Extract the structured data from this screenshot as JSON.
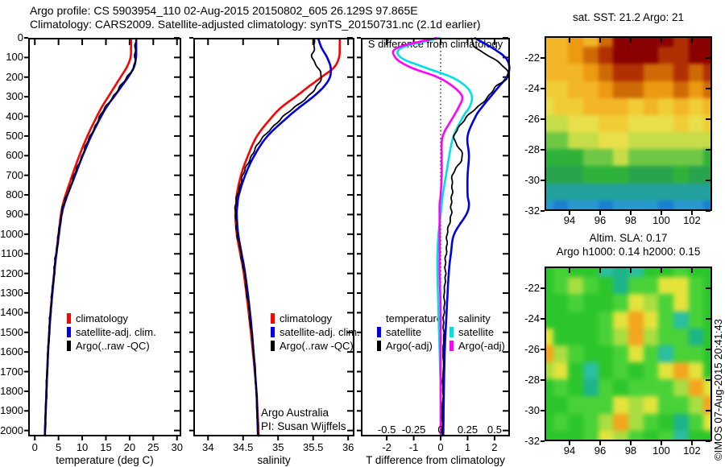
{
  "title": {
    "line1": "Argo profile: CS 5903954_110 02-Aug-2015 20150802_605 26.129S 97.865E",
    "line2": "Climatology: CARS2009. Satellite-adjusted climatology: synTS_20150731.nc (2.1d earlier)"
  },
  "annotations": {
    "argo_program": "Argo Australia",
    "argo_pi": "PI: Susan Wijffels",
    "copyright": "©IMOS 07-Aug-2015 20:41:43"
  },
  "legends": {
    "profile": [
      {
        "label": "climatology",
        "color": "#ff0000"
      },
      {
        "label": "satellite-adj. clim.",
        "color": "#0000e0"
      },
      {
        "label": "Argo(..raw -QC)",
        "color": "#000000"
      }
    ],
    "diff": {
      "temperature": {
        "header": "temperature",
        "items": [
          {
            "label": "satellite",
            "color": "#0000e0"
          },
          {
            "label": "Argo(-adj)",
            "color": "#000000"
          }
        ]
      },
      "salinity": {
        "header": "salinity",
        "items": [
          {
            "label": "satellite",
            "color": "#00e0e0"
          },
          {
            "label": "Argo(-adj)",
            "color": "#ff00ff"
          }
        ]
      }
    }
  },
  "chart_data": [
    {
      "id": "temp",
      "type": "line",
      "xlabel": "temperature (deg C)",
      "xlim": [
        -1.4,
        30.9
      ],
      "ylim": [
        0,
        2030
      ],
      "xticks": [
        0,
        5,
        10,
        15,
        20,
        25,
        30
      ],
      "yticks": [
        0,
        100,
        200,
        300,
        400,
        500,
        600,
        700,
        800,
        900,
        1000,
        1100,
        1200,
        1300,
        1400,
        1500,
        1600,
        1700,
        1800,
        1900,
        2000
      ],
      "ytick_labels_visible": true,
      "depths": [
        0,
        50,
        100,
        150,
        200,
        250,
        300,
        350,
        400,
        500,
        600,
        700,
        800,
        850,
        900,
        1000,
        1100,
        1200,
        1400,
        1600,
        1800,
        2000,
        2030
      ],
      "series": [
        {
          "name": "climatology",
          "color": "#ff0000",
          "width": 2.6,
          "values": [
            20.3,
            20.3,
            20.2,
            19.4,
            18.1,
            16.8,
            15.5,
            14.2,
            13.1,
            11.1,
            9.4,
            7.9,
            6.5,
            5.9,
            5.5,
            5.0,
            4.5,
            4.05,
            3.3,
            2.8,
            2.45,
            2.15,
            2.1
          ]
        },
        {
          "name": "satellite-adj. clim.",
          "color": "#0000e0",
          "width": 2.6,
          "values": [
            21.4,
            21.4,
            21.35,
            20.9,
            19.7,
            18.2,
            16.7,
            15.2,
            14.0,
            11.9,
            10.1,
            8.5,
            6.9,
            6.2,
            5.65,
            5.1,
            4.55,
            4.1,
            3.35,
            2.8,
            2.45,
            2.15,
            2.1
          ]
        },
        {
          "name": "Argo(..raw -QC)",
          "color": "#000000",
          "width": 1.8,
          "jitter": true,
          "values": [
            21.2,
            21.2,
            21.2,
            20.8,
            19.5,
            18.0,
            16.5,
            15.0,
            13.8,
            11.7,
            9.95,
            8.35,
            6.8,
            6.1,
            5.6,
            5.05,
            4.5,
            4.05,
            3.3,
            2.8,
            2.45,
            2.15,
            2.1
          ]
        }
      ]
    },
    {
      "id": "sal",
      "type": "line",
      "xlabel": "salinity",
      "xlim": [
        33.79,
        36.09
      ],
      "ylim": [
        0,
        2030
      ],
      "xticks": [
        34,
        34.5,
        35,
        35.5,
        36
      ],
      "yticks": [
        0,
        100,
        200,
        300,
        400,
        500,
        600,
        700,
        800,
        900,
        1000,
        1100,
        1200,
        1300,
        1400,
        1500,
        1600,
        1700,
        1800,
        1900,
        2000
      ],
      "ytick_labels_visible": false,
      "depths": [
        0,
        50,
        100,
        150,
        200,
        250,
        300,
        350,
        400,
        500,
        600,
        700,
        800,
        850,
        900,
        1000,
        1100,
        1200,
        1400,
        1600,
        1800,
        2000,
        2030
      ],
      "series": [
        {
          "name": "climatology",
          "color": "#ff0000",
          "width": 2.6,
          "values": [
            35.88,
            35.88,
            35.87,
            35.8,
            35.62,
            35.43,
            35.25,
            35.06,
            34.92,
            34.7,
            34.57,
            34.47,
            34.41,
            34.4,
            34.39,
            34.41,
            34.46,
            34.51,
            34.58,
            34.64,
            34.69,
            34.72,
            34.72
          ]
        },
        {
          "name": "satellite-adj. clim.",
          "color": "#0000e0",
          "width": 2.6,
          "values": [
            35.57,
            35.62,
            35.7,
            35.75,
            35.74,
            35.65,
            35.5,
            35.32,
            35.15,
            34.85,
            34.66,
            34.53,
            34.44,
            34.42,
            34.41,
            34.43,
            34.48,
            34.53,
            34.6,
            34.65,
            34.69,
            34.71,
            34.71
          ]
        },
        {
          "name": "Argo(..raw -QC)",
          "color": "#000000",
          "width": 1.8,
          "jitter": true,
          "values": [
            35.5,
            35.52,
            35.49,
            35.56,
            35.62,
            35.55,
            35.42,
            35.25,
            35.08,
            34.8,
            34.62,
            34.5,
            34.42,
            34.4,
            34.39,
            34.42,
            34.47,
            34.52,
            34.59,
            34.65,
            34.69,
            34.71,
            34.71
          ]
        }
      ]
    },
    {
      "id": "diff",
      "type": "line",
      "xlabel": "T difference from climatology",
      "xlim": [
        -2.96,
        2.57
      ],
      "ylim": [
        0,
        2030
      ],
      "xticks": [
        -2,
        -1,
        0,
        1,
        2
      ],
      "yticks": [
        0,
        100,
        200,
        300,
        400,
        500,
        600,
        700,
        800,
        900,
        1000,
        1100,
        1200,
        1300,
        1400,
        1500,
        1600,
        1700,
        1800,
        1900,
        2000
      ],
      "ytick_labels_visible": false,
      "zero_line": true,
      "s_axis": {
        "label": "S difference from climatology",
        "ticks": [
          -0.5,
          -0.25,
          0,
          0.25,
          0.5
        ],
        "scale": 4
      },
      "depths": [
        0,
        50,
        100,
        150,
        200,
        250,
        300,
        350,
        400,
        500,
        600,
        700,
        800,
        850,
        900,
        1000,
        1100,
        1200,
        1400,
        1600,
        1800,
        2000,
        2030
      ],
      "series": [
        {
          "name": "T satellite",
          "axis": "T",
          "color": "#0000e0",
          "width": 2.6,
          "values": [
            1.25,
            1.9,
            2.4,
            2.55,
            2.45,
            2.15,
            1.85,
            1.55,
            1.3,
            1.0,
            1.05,
            1.0,
            1.0,
            1.05,
            0.95,
            0.5,
            0.38,
            0.3,
            0.22,
            0.15,
            0.12,
            0.1,
            0.1
          ]
        },
        {
          "name": "T Argo(-adj)",
          "axis": "T",
          "color": "#000000",
          "width": 1.8,
          "jitter": true,
          "values": [
            1.1,
            1.3,
            1.9,
            2.35,
            2.5,
            2.05,
            1.75,
            1.4,
            1.0,
            0.5,
            0.8,
            0.45,
            0.42,
            0.4,
            0.38,
            0.25,
            0.2,
            0.17,
            0.12,
            0.1,
            0.08,
            0.05,
            0.05
          ]
        },
        {
          "name": "S satellite",
          "axis": "S",
          "color": "#00e0e0",
          "width": 2.6,
          "values": [
            0.0,
            -0.36,
            -0.37,
            -0.15,
            0.1,
            0.24,
            0.29,
            0.27,
            0.21,
            0.12,
            0.08,
            0.05,
            0.02,
            0.01,
            0.0,
            -0.02,
            -0.03,
            -0.03,
            -0.02,
            -0.01,
            0.0,
            0.0,
            0.0
          ]
        },
        {
          "name": "S Argo(-adj)",
          "axis": "S",
          "color": "#ff00ff",
          "width": 2.6,
          "values": [
            -0.03,
            -0.4,
            -0.42,
            -0.28,
            -0.03,
            0.12,
            0.2,
            0.17,
            0.12,
            0.02,
            0.01,
            0.01,
            0.0,
            -0.01,
            -0.01,
            -0.01,
            -0.01,
            -0.01,
            0.0,
            0.0,
            0.0,
            0.0,
            0.0
          ]
        }
      ]
    },
    {
      "id": "sst",
      "type": "heatmap",
      "title": "sat. SST: 21.2 Argo: 21",
      "xticks": [
        94,
        96,
        98,
        100,
        102
      ],
      "yticks": [
        -22,
        -24,
        -26,
        -28,
        -30,
        -32
      ],
      "xlim": [
        92.37,
        103.32
      ],
      "ylim": [
        -20.58,
        -32
      ],
      "palette": {
        "d": "#8b0000",
        "r": "#b03004",
        "R": "#cf6a06",
        "o": "#ed9912",
        "O": "#f3b629",
        "Y": "#f0cd37",
        "y": "#e8df4a",
        "q": "#c6dc48",
        "g": "#6fc746",
        "G": "#2fb23a",
        "e": "#27a44c",
        "T": "#21a09d",
        "C": "#2a97cf",
        "B": "#1a7fd0"
      },
      "rows": [
        "OOoORddddrdd",
        "OOoRrdddrrdd",
        "OOOoRrrRRrRr",
        "YYOOoRRooRoR",
        "yYYOOOYOYOYO",
        "qqyyYYyyyYyY",
        "ggqqyyqqqqqq",
        "GGGggqgggggG",
        "eeeGGGeeeGee",
        "TTTTTTTTTTTT",
        "CBCCBCCCBCCB"
      ]
    },
    {
      "id": "sla",
      "type": "heatmap",
      "title1": "Altim. SLA: 0.17",
      "title2": "Argo h1000: 0.14 h2000: 0.15",
      "xticks": [
        94,
        96,
        98,
        100,
        102
      ],
      "yticks": [
        -22,
        -24,
        -26,
        -28,
        -30,
        -32
      ],
      "xlim": [
        92.37,
        103.32
      ],
      "ylim": [
        -20.58,
        -32
      ],
      "palette": {
        "G": "#2cc62c",
        "g": "#49d238",
        "Y": "#a9de41",
        "y": "#e3e33c",
        "O": "#f4a51f",
        "T": "#1db489",
        "t": "#2abfa0"
      },
      "rows": [
        "GgGGtTtGGgGG",
        "GgYgGTggyygG",
        "GGgGGgyYgygG",
        "GGGGgyOygtgG",
        "yGGGgYOYggTG",
        "OYgGGgygtggG",
        "YyGtGgGgyOyG",
        "GgGTgGgggYOy",
        "GGgggyYyggYO",
        "GgGgYOYgGTgy",
        "GGGgyYgGgtGG"
      ]
    }
  ]
}
